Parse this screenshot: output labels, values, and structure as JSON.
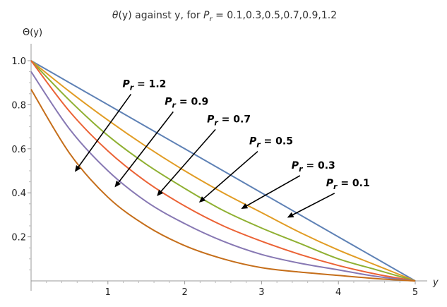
{
  "chart_data": {
    "type": "line",
    "title": {
      "theta": "θ",
      "mid": "(y) against  y, for ",
      "P": "P",
      "sub": "r",
      "values": " = 0.1,0.3,0.5,0.7,0.9,1.2"
    },
    "ylabel": "Θ(y)",
    "xlabel": "y",
    "xlim": [
      0,
      5
    ],
    "ylim": [
      0,
      1.05
    ],
    "xticks": [
      1,
      2,
      3,
      4,
      5
    ],
    "yticks": [
      0.2,
      0.4,
      0.6,
      0.8,
      1.0
    ],
    "ytick_labels": [
      "0.2",
      "0.4",
      "0.6",
      "0.8",
      "1.0"
    ],
    "x": [
      0,
      0.5,
      1,
      1.5,
      2,
      2.5,
      3,
      3.5,
      4,
      4.5,
      5
    ],
    "series": [
      {
        "pr": "0.1",
        "color": "#5e81b5",
        "values": [
          1.0,
          0.9,
          0.8,
          0.7,
          0.6,
          0.5,
          0.4,
          0.3,
          0.2,
          0.1,
          0.0
        ]
      },
      {
        "pr": "0.3",
        "color": "#e19c24",
        "values": [
          1.0,
          0.86,
          0.73,
          0.61,
          0.5,
          0.4,
          0.31,
          0.22,
          0.14,
          0.07,
          0.0
        ]
      },
      {
        "pr": "0.5",
        "color": "#8fb032",
        "values": [
          1.0,
          0.82,
          0.66,
          0.53,
          0.42,
          0.32,
          0.24,
          0.17,
          0.1,
          0.05,
          0.0
        ]
      },
      {
        "pr": "0.7",
        "color": "#eb6235",
        "values": [
          1.0,
          0.77,
          0.59,
          0.45,
          0.34,
          0.25,
          0.18,
          0.12,
          0.07,
          0.03,
          0.0
        ]
      },
      {
        "pr": "0.9",
        "color": "#8778b3",
        "values": [
          0.95,
          0.69,
          0.5,
          0.36,
          0.26,
          0.18,
          0.12,
          0.08,
          0.05,
          0.02,
          0.0
        ]
      },
      {
        "pr": "1.2",
        "color": "#c56e1a",
        "values": [
          0.87,
          0.58,
          0.38,
          0.25,
          0.16,
          0.1,
          0.06,
          0.04,
          0.025,
          0.01,
          0.0
        ]
      }
    ],
    "annotations": [
      {
        "label": "1.2",
        "x": 1.3,
        "y": 0.88,
        "tx": 0.58,
        "ty": 0.5
      },
      {
        "label": "0.9",
        "x": 1.85,
        "y": 0.8,
        "tx": 1.1,
        "ty": 0.43
      },
      {
        "label": "0.7",
        "x": 2.4,
        "y": 0.72,
        "tx": 1.65,
        "ty": 0.39
      },
      {
        "label": "0.5",
        "x": 2.95,
        "y": 0.62,
        "tx": 2.2,
        "ty": 0.36
      },
      {
        "label": "0.3",
        "x": 3.5,
        "y": 0.51,
        "tx": 2.75,
        "ty": 0.33
      },
      {
        "label": "0.1",
        "x": 3.95,
        "y": 0.43,
        "tx": 3.35,
        "ty": 0.29
      }
    ],
    "annotation_prefix": "P",
    "annotation_sub": "r",
    "annotation_eq": " = "
  }
}
